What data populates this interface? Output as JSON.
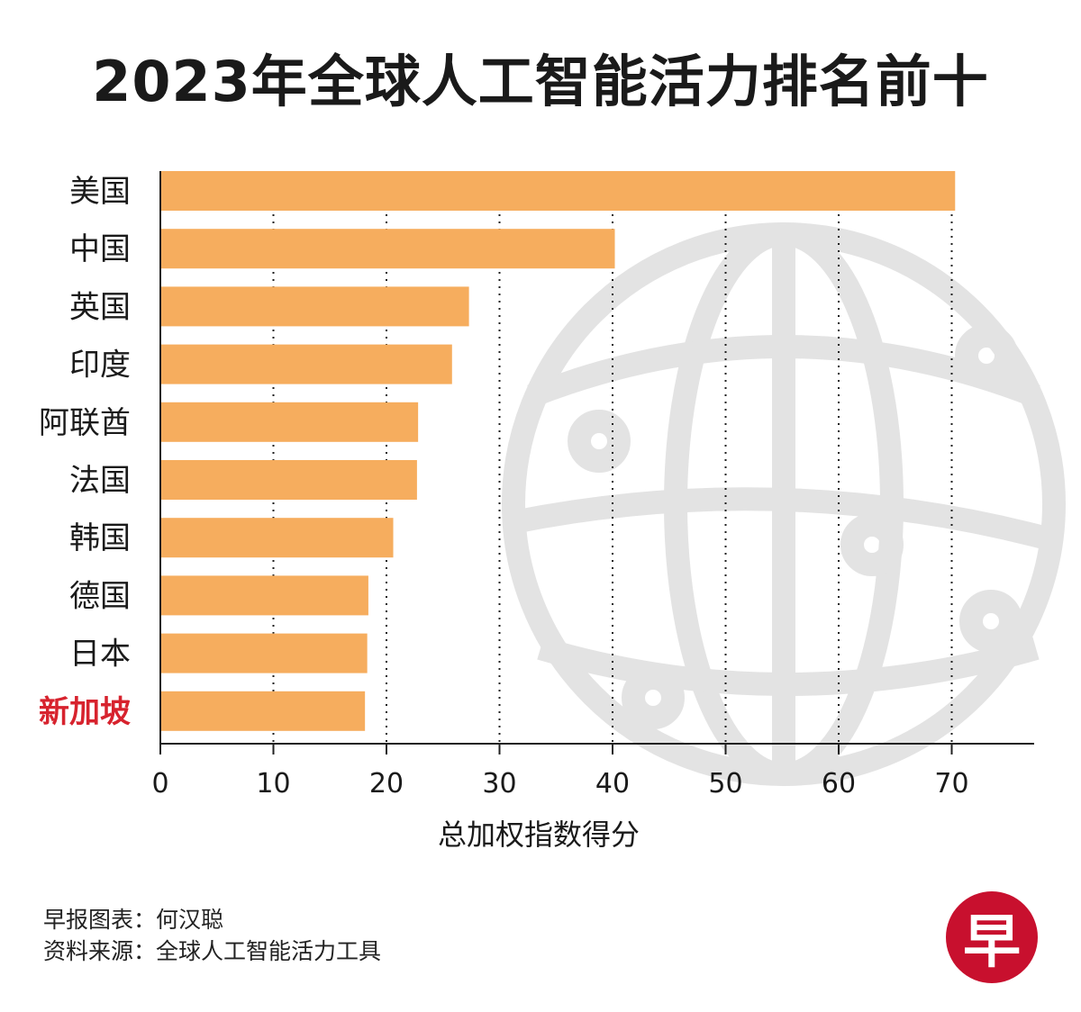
{
  "title": "2023年全球人工智能活力排名前十",
  "chart_data": {
    "type": "bar",
    "orientation": "horizontal",
    "title": "2023年全球人工智能活力排名前十",
    "categories": [
      "美国",
      "中国",
      "英国",
      "印度",
      "阿联酋",
      "法国",
      "韩国",
      "德国",
      "日本",
      "新加坡"
    ],
    "values": [
      70.3,
      40.2,
      27.3,
      25.8,
      22.8,
      22.7,
      20.6,
      18.4,
      18.3,
      18.1
    ],
    "highlight": "新加坡",
    "xlabel": "总加权指数得分",
    "ylabel": "",
    "xlim": [
      0,
      77
    ],
    "xticks": [
      "0",
      "10",
      "20",
      "30",
      "40",
      "50",
      "60",
      "70"
    ],
    "grid": "vertical dotted",
    "colors": {
      "bar": "#F6AD5E",
      "highlight_label": "#D7232E",
      "text": "#1a1a1a"
    }
  },
  "credits": {
    "chart_by": "早报图表：何汉聪",
    "source": "资料来源：全球人工智能活力工具"
  },
  "logo": "早"
}
